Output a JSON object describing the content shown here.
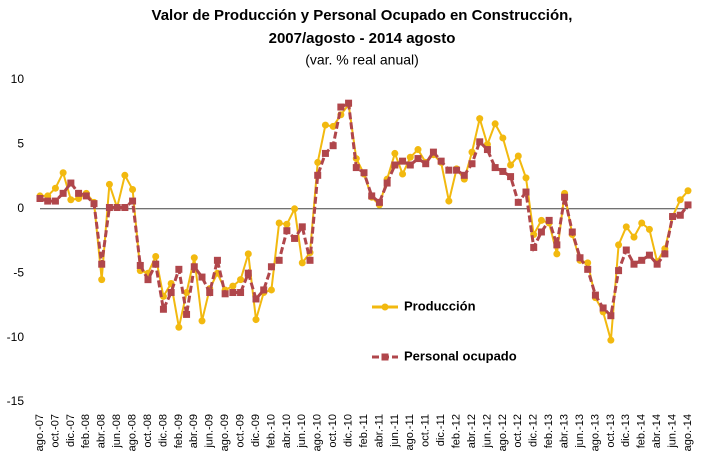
{
  "chart_data": {
    "type": "line",
    "title": [
      "Valor de Producción y Personal Ocupado en Construcción,",
      "2007/agosto - 2014 agosto"
    ],
    "subtitle": "(var. % real anual)",
    "categories": [
      "ago.-07",
      null,
      "oct.-07",
      null,
      "dic.-07",
      null,
      "feb.-08",
      null,
      "abr.-08",
      null,
      "jun.-08",
      null,
      "ago.-08",
      null,
      "oct.-08",
      null,
      "dic.-08",
      null,
      "feb.-09",
      null,
      "abr.-09",
      null,
      "jun.-09",
      null,
      "ago.-09",
      null,
      "oct.-09",
      null,
      "dic.-09",
      null,
      "feb.-10",
      null,
      "abr.-10",
      null,
      "jun.-10",
      null,
      "ago.-10",
      null,
      "oct.-10",
      null,
      "dic.-10",
      null,
      "feb.-11",
      null,
      "abr.-11",
      null,
      "jun.-11",
      null,
      "ago.-11",
      null,
      "oct.-11",
      null,
      "dic.-11",
      null,
      "feb.-12",
      null,
      "abr.-12",
      null,
      "jun.-12",
      null,
      "ago.-12",
      null,
      "oct.-12",
      null,
      "dic.-12",
      null,
      "feb.-13",
      null,
      "abr.-13",
      null,
      "jun.-13",
      null,
      "ago.-13",
      null,
      "oct.-13",
      null,
      "dic.-13",
      null,
      "feb.-14",
      null,
      "abr.-14",
      null,
      "jun.-14",
      null,
      "ago.-14"
    ],
    "series": [
      {
        "name": "Producción",
        "color": "#f2b90f",
        "marker": "circle",
        "values": [
          1.0,
          1.0,
          1.6,
          2.8,
          0.7,
          0.8,
          1.2,
          0.5,
          -5.5,
          1.9,
          0.1,
          2.6,
          1.5,
          -4.8,
          -5.0,
          -3.7,
          -6.8,
          -5.8,
          -9.2,
          -6.5,
          -3.8,
          -8.7,
          -6.2,
          -5.0,
          -6.3,
          -6.0,
          -5.5,
          -3.5,
          -8.6,
          -6.5,
          -6.3,
          -1.1,
          -1.2,
          0.0,
          -4.2,
          -3.4,
          3.6,
          6.5,
          6.4,
          7.3,
          8.1,
          3.9,
          2.7,
          0.9,
          0.3,
          2.3,
          4.3,
          2.7,
          4.0,
          4.6,
          3.6,
          4.2,
          3.6,
          0.6,
          3.1,
          2.3,
          4.4,
          7.0,
          5.0,
          6.6,
          5.5,
          3.4,
          4.1,
          2.4,
          -2.0,
          -0.9,
          -1.1,
          -3.5,
          1.2,
          -2.0,
          -4.0,
          -4.2,
          -6.9,
          -8.0,
          -10.2,
          -2.8,
          -1.4,
          -2.2,
          -1.1,
          -1.6,
          -4.1,
          -3.1,
          -0.6,
          0.7,
          1.4
        ]
      },
      {
        "name": "Personal ocupado",
        "color": "#b0464b",
        "marker": "square",
        "values": [
          0.8,
          0.6,
          0.6,
          1.2,
          2.0,
          1.2,
          1.0,
          0.4,
          -4.3,
          0.1,
          0.1,
          0.1,
          0.6,
          -4.4,
          -5.5,
          -4.3,
          -7.8,
          -6.5,
          -4.7,
          -8.2,
          -4.5,
          -5.3,
          -6.5,
          -4.0,
          -6.6,
          -6.5,
          -6.5,
          -5.0,
          -7.0,
          -6.3,
          -4.5,
          -4.0,
          -1.7,
          -2.3,
          -1.4,
          -4.0,
          2.6,
          4.3,
          4.9,
          7.9,
          8.2,
          3.2,
          2.8,
          1.0,
          0.5,
          2.0,
          3.4,
          3.7,
          3.4,
          3.9,
          3.5,
          4.4,
          3.7,
          3.0,
          3.0,
          2.6,
          3.5,
          5.2,
          4.6,
          3.2,
          2.9,
          2.5,
          0.5,
          1.3,
          -3.0,
          -1.8,
          -0.9,
          -2.8,
          0.9,
          -1.8,
          -3.8,
          -4.7,
          -6.7,
          -7.7,
          -8.3,
          -4.8,
          -3.2,
          -4.3,
          -4.0,
          -3.6,
          -4.3,
          -3.5,
          -0.6,
          -0.5,
          0.3
        ]
      }
    ],
    "ylim": [
      -15,
      10
    ],
    "yticks": [
      -15,
      -10,
      -5,
      0,
      5,
      10
    ],
    "grid": false
  }
}
